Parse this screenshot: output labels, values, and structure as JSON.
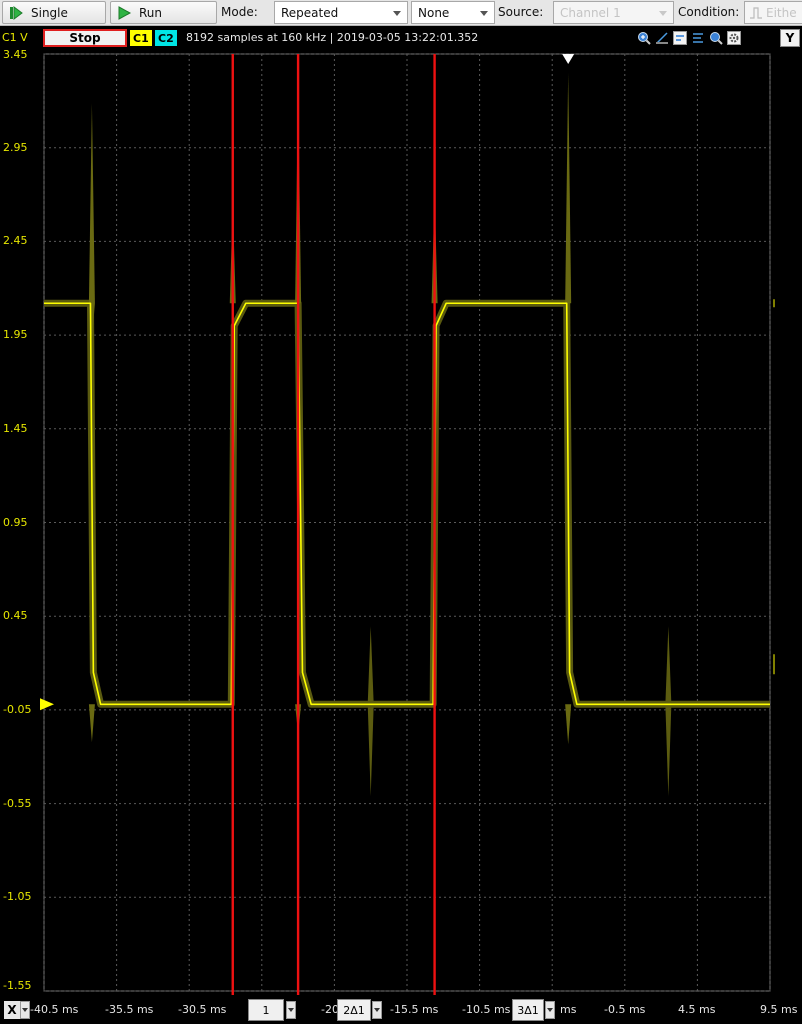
{
  "toolbar": {
    "single_label": "Single",
    "run_label": "Run",
    "mode_label": "Mode:",
    "mode_value": "Repeated",
    "trigger_value": "None",
    "source_label": "Source:",
    "source_value": "Channel 1",
    "condition_label": "Condition:",
    "condition_value": "Eithe"
  },
  "header": {
    "unit": "C1 V",
    "stop_label": "Stop",
    "ch1_label": "C1",
    "ch2_label": "C2",
    "info": "8192 samples at 160 kHz | 2019-03-05 13:22:01.352",
    "y_label": "Y"
  },
  "colors": {
    "trace": "#ffff00",
    "cursor": "#ee1111",
    "grid": "#5a5a5a",
    "ch2": "#00e5e5"
  },
  "y_ticks": [
    "3.45",
    "2.95",
    "2.45",
    "1.95",
    "1.45",
    "0.95",
    "0.45",
    "-0.05",
    "-0.55",
    "-1.05",
    "-1.55"
  ],
  "x_axis": {
    "x_label": "X",
    "ticks": [
      "-40.5 ms",
      "-35.5 ms",
      "-30.5 ms",
      "-20",
      "-15.5 ms",
      "-10.5 ms",
      "ms",
      "-0.5 ms",
      "4.5 ms",
      "9.5 ms"
    ],
    "cursors": [
      {
        "label": "1"
      },
      {
        "label": "2Δ1"
      },
      {
        "label": "3Δ1"
      }
    ]
  },
  "chart_data": {
    "type": "line",
    "xlabel": "",
    "ylabel": "C1 V",
    "xlim": [
      -40.5,
      9.5
    ],
    "ylim": [
      -1.55,
      3.45
    ],
    "x_unit": "ms",
    "grid": true,
    "series": [
      {
        "x": [
          -40.5,
          -37.3,
          -37.1,
          -36.6,
          -27.6,
          -27.4,
          -26.6,
          -23.0,
          -22.7,
          -22.1,
          -13.7,
          -13.5,
          -12.8,
          -4.5,
          -4.3,
          -3.8,
          9.5
        ],
        "values": [
          2.12,
          2.12,
          0.15,
          -0.02,
          -0.02,
          2.0,
          2.12,
          2.12,
          0.15,
          -0.02,
          -0.02,
          2.0,
          2.12,
          2.12,
          0.15,
          -0.02,
          -0.02
        ]
      }
    ],
    "cursors_ms": [
      -27.5,
      -23.0,
      -13.6
    ]
  }
}
